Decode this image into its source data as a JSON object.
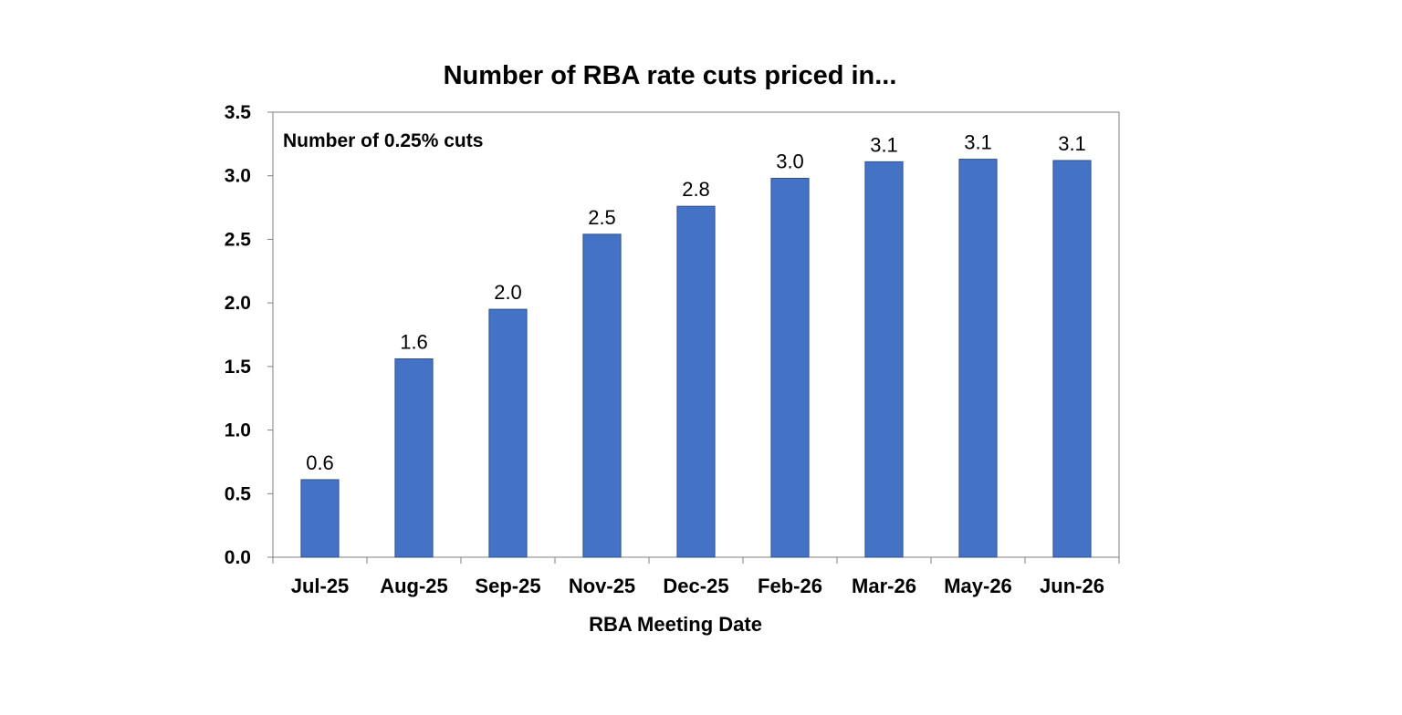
{
  "chart_data": {
    "type": "bar",
    "title": "Number of RBA rate cuts priced in...",
    "xlabel": "RBA Meeting Date",
    "ylabel": "",
    "annotation": "Number of 0.25% cuts",
    "categories": [
      "Jul-25",
      "Aug-25",
      "Sep-25",
      "Nov-25",
      "Dec-25",
      "Feb-26",
      "Mar-26",
      "May-26",
      "Jun-26"
    ],
    "values": [
      0.61,
      1.56,
      1.95,
      2.54,
      2.76,
      2.98,
      3.11,
      3.13,
      3.12
    ],
    "data_labels": [
      "0.6",
      "1.6",
      "2.0",
      "2.5",
      "2.8",
      "3.0",
      "3.1",
      "3.1",
      "3.1"
    ],
    "ylim": [
      0,
      3.5
    ],
    "yticks": [
      "0.0",
      "0.5",
      "1.0",
      "1.5",
      "2.0",
      "2.5",
      "3.0",
      "3.5"
    ],
    "grid": false,
    "legend": "none",
    "bar_color": "#4472c4"
  }
}
